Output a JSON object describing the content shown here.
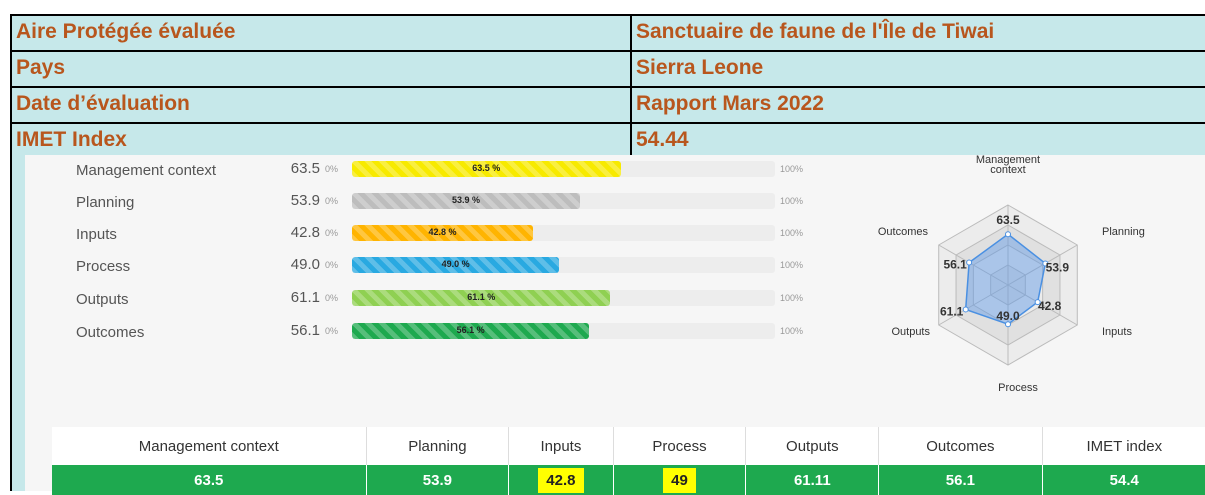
{
  "header": {
    "rows": [
      [
        "Aire Protégée évaluée",
        "Sanctuaire de faune de l'Île de Tiwai"
      ],
      [
        "Pays",
        "Sierra Leone"
      ],
      [
        "Date d’évaluation",
        "Rapport Mars 2022"
      ],
      [
        "IMET Index",
        "54.44"
      ]
    ]
  },
  "bars": {
    "scale": {
      "min": 0,
      "max": 100,
      "min_label": "0%",
      "max_label": "100%"
    },
    "items": [
      {
        "label": "Management context",
        "value": 63.5,
        "value_text": "63.5",
        "bar_label": "63.5 %",
        "color": "#f7ea00"
      },
      {
        "label": "Planning",
        "value": 53.9,
        "value_text": "53.9",
        "bar_label": "53.9 %",
        "color": "#bdbdbd"
      },
      {
        "label": "Inputs",
        "value": 42.8,
        "value_text": "42.8",
        "bar_label": "42.8 %",
        "color": "#ffb400"
      },
      {
        "label": "Process",
        "value": 49.0,
        "value_text": "49.0",
        "bar_label": "49.0 %",
        "color": "#29a9e1"
      },
      {
        "label": "Outputs",
        "value": 61.1,
        "value_text": "61.1",
        "bar_label": "61.1 %",
        "color": "#8fd052"
      },
      {
        "label": "Outcomes",
        "value": 56.1,
        "value_text": "56.1",
        "bar_label": "56.1 %",
        "color": "#1ea94f"
      }
    ]
  },
  "table": {
    "headers": [
      "Management context",
      "Planning",
      "Inputs",
      "Process",
      "Outputs",
      "Outcomes",
      "IMET index"
    ],
    "values": [
      "63.5",
      "53.9",
      "42.8",
      "49",
      "61.11",
      "56.1",
      "54.4"
    ],
    "highlight": [
      false,
      false,
      true,
      true,
      false,
      false,
      false
    ]
  }
}
